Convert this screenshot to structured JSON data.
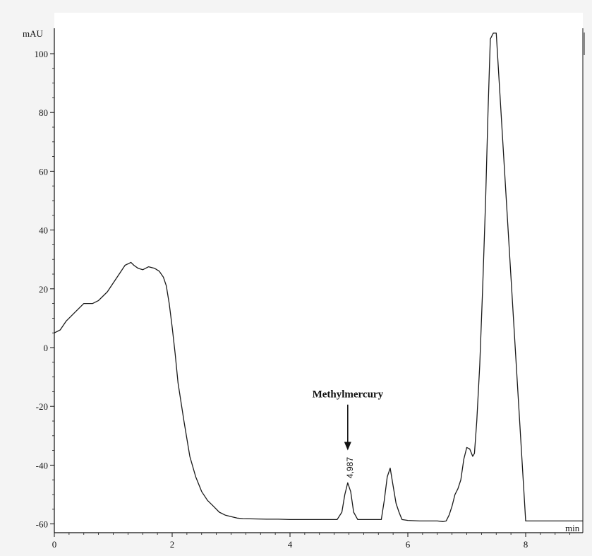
{
  "chart_data": {
    "type": "line",
    "xlabel": "min",
    "ylabel": "mAU",
    "xlim": [
      0,
      9
    ],
    "ylim": [
      -63,
      107
    ],
    "x_ticks": [
      0,
      2,
      4,
      6,
      8
    ],
    "y_ticks": [
      -60,
      -40,
      -20,
      0,
      20,
      40,
      60,
      80,
      100
    ],
    "grid": false,
    "series": [
      {
        "color": "#1a1a1a",
        "x": [
          0,
          0.1,
          0.2,
          0.35,
          0.5,
          0.65,
          0.75,
          0.9,
          1.0,
          1.1,
          1.2,
          1.3,
          1.35,
          1.42,
          1.5,
          1.6,
          1.7,
          1.78,
          1.85,
          1.9,
          1.95,
          2.0,
          2.05,
          2.1,
          2.2,
          2.3,
          2.4,
          2.5,
          2.6,
          2.7,
          2.8,
          2.9,
          3.0,
          3.1,
          3.2,
          3.4,
          3.6,
          3.8,
          4.0,
          4.5,
          4.8,
          4.88,
          4.93,
          4.98,
          5.03,
          5.08,
          5.15,
          5.25,
          5.4,
          5.55,
          5.6,
          5.65,
          5.7,
          5.75,
          5.8,
          5.85,
          5.9,
          6.0,
          6.2,
          6.4,
          6.5,
          6.6,
          6.65,
          6.7,
          6.75,
          6.8,
          6.85,
          6.9,
          6.95,
          7.0,
          7.05,
          7.1,
          7.13,
          7.17,
          7.22,
          7.27,
          7.32,
          7.36,
          7.4,
          7.45,
          7.5,
          8.0,
          8.5,
          9.0
        ],
        "y": [
          5,
          6,
          9,
          12,
          15,
          15,
          16,
          19,
          22,
          25,
          28,
          29,
          28,
          27,
          26.5,
          27.5,
          27,
          26,
          24,
          21,
          15,
          7,
          -2,
          -12,
          -25,
          -37,
          -44,
          -49,
          -52,
          -54,
          -56,
          -57,
          -57.5,
          -58,
          -58.2,
          -58.3,
          -58.4,
          -58.4,
          -58.5,
          -58.5,
          -58.5,
          -56,
          -50,
          -46,
          -49,
          -56,
          -58.5,
          -58.5,
          -58.5,
          -58.5,
          -52,
          -44,
          -41,
          -47,
          -53,
          -56,
          -58.5,
          -58.8,
          -59,
          -59,
          -59,
          -59.2,
          -59,
          -57,
          -54,
          -50,
          -48,
          -45,
          -38,
          -34,
          -34.5,
          -37,
          -36,
          -25,
          -6,
          20,
          50,
          80,
          105,
          107,
          107,
          -59,
          -59,
          -59
        ]
      }
    ],
    "annotations": [
      {
        "text": "Methylmercury",
        "x": 4.98,
        "y": -17
      },
      {
        "text": "4,987",
        "x": 4.98,
        "y": -44
      }
    ]
  }
}
